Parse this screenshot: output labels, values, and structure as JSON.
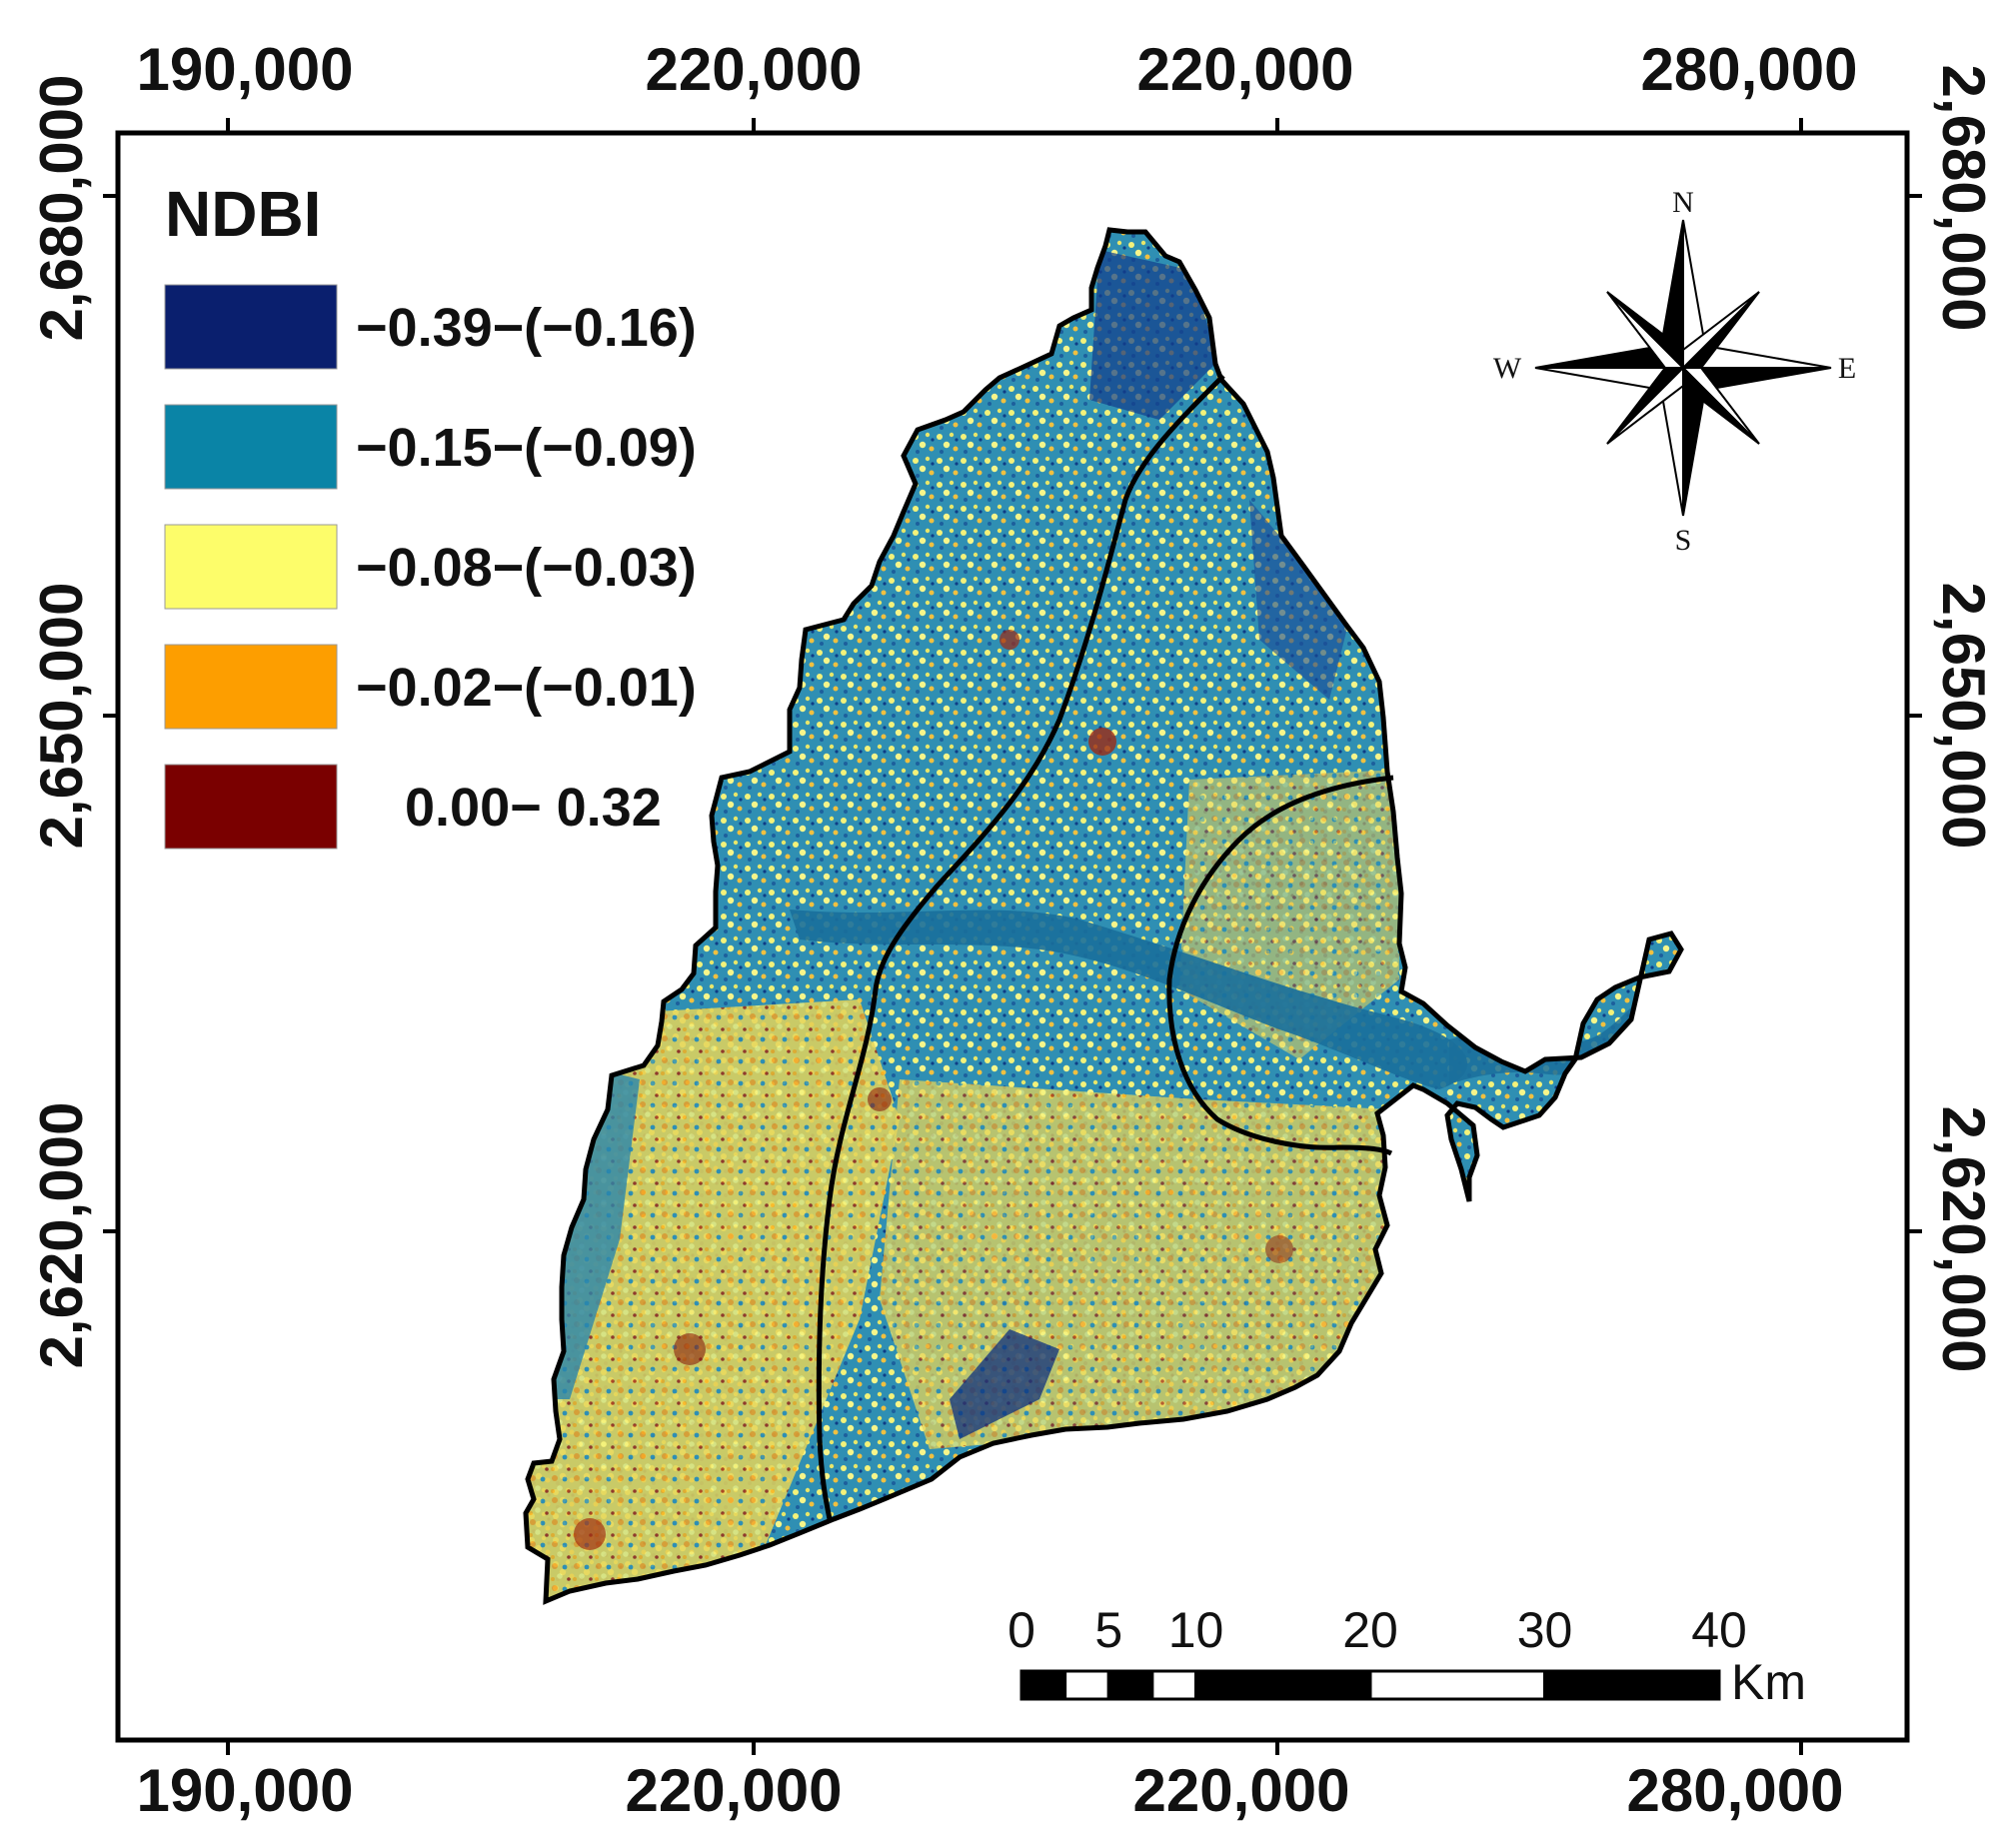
{
  "map": {
    "legend": {
      "title": "NDBI",
      "classes": [
        {
          "label": "−0.39−(−0.16)",
          "color": "#0a1f6e"
        },
        {
          "label": "−0.15−(−0.09)",
          "color": "#0a84a6"
        },
        {
          "label": "−0.08−(−0.03)",
          "color": "#fdfd6a"
        },
        {
          "label": "−0.02−(−0.01)",
          "color": "#fd9e00"
        },
        {
          "label": "0.00− 0.32",
          "color": "#7a0000"
        }
      ]
    },
    "top_ticks": [
      "190,000",
      "220,000",
      "220,000",
      "280,000"
    ],
    "bottom_ticks": [
      "190,000",
      "220,000",
      "220,000",
      "280,000"
    ],
    "left_ticks": [
      "2,680,000",
      "2,650,000",
      "2,620,000"
    ],
    "right_ticks": [
      "2,680,000",
      "2,650,000",
      "2,620,000"
    ],
    "compass": {
      "n": "N",
      "s": "S",
      "e": "E",
      "w": "W"
    },
    "scale_bar": {
      "labels": [
        "0",
        "5",
        "10",
        "20",
        "30",
        "40"
      ],
      "unit": "Km"
    }
  }
}
